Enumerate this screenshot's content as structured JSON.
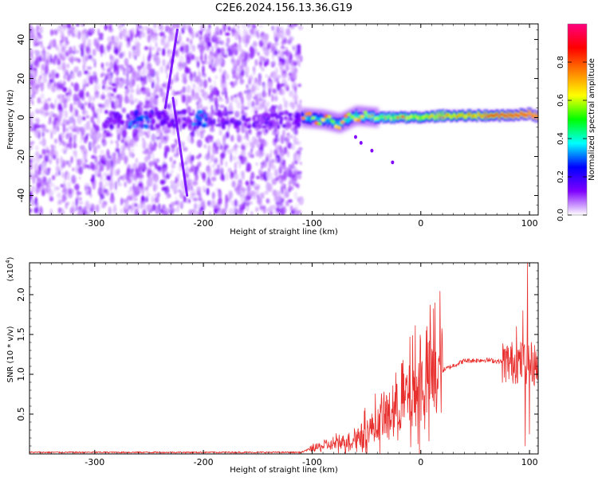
{
  "figure": {
    "title": "C2E6.2024.156.13.36.G19"
  },
  "chart_data": [
    {
      "type": "heatmap",
      "xlabel": "Height of straight line (km)",
      "ylabel": "Frequency (Hz)",
      "xlim": [
        -360,
        108
      ],
      "ylim": [
        -50,
        48
      ],
      "x_ticks": [
        -300,
        -200,
        -100,
        0,
        100
      ],
      "y_ticks": [
        -40,
        -20,
        0,
        20,
        40
      ],
      "colorbar": {
        "label": "Normalized spectral amplitude",
        "range": [
          0,
          1
        ],
        "ticks": [
          "0.0",
          "0.2",
          "0.4",
          "0.6",
          "0.8"
        ],
        "tick_values": [
          0,
          0.2,
          0.4,
          0.6,
          0.8
        ],
        "colors": [
          "#ffffff",
          "#7f00ff",
          "#0000ff",
          "#00ffff",
          "#00ff00",
          "#ffff00",
          "#ff8000",
          "#ff0000",
          "#ff0080"
        ]
      },
      "features": {
        "noise_region_x": [
          -360,
          -110
        ],
        "signal_region_x": [
          -110,
          108
        ],
        "ridge_frequency_hz": [
          [
            -110,
            0
          ],
          [
            -90,
            -1
          ],
          [
            -75,
            -3
          ],
          [
            -60,
            1
          ],
          [
            -40,
            0
          ],
          [
            -20,
            0
          ],
          [
            0,
            0
          ],
          [
            20,
            1
          ],
          [
            40,
            1
          ],
          [
            60,
            1
          ],
          [
            80,
            1
          ],
          [
            100,
            2
          ],
          [
            108,
            0
          ]
        ],
        "streaks": [
          {
            "x": [
              -215,
              -228
            ],
            "y": [
              -40,
              10
            ]
          },
          {
            "x": [
              -235,
              -224
            ],
            "y": [
              5,
              45
            ]
          }
        ],
        "outliers": [
          [
            -60,
            -10
          ],
          [
            -55,
            -13
          ],
          [
            -45,
            -17
          ],
          [
            -26,
            -23
          ]
        ]
      }
    },
    {
      "type": "line",
      "xlabel": "Height of straight line (km)",
      "ylabel": "SNR (10 * v/v)",
      "y_multiplier": "(x10",
      "y_multiplier_exp": "4",
      "xlim": [
        -360,
        108
      ],
      "ylim": [
        0,
        2.4
      ],
      "x_ticks": [
        -300,
        -200,
        -100,
        0,
        100
      ],
      "y_ticks": [
        0.5,
        1.0,
        1.5,
        2.0
      ],
      "y_tick_labels": [
        "0.5",
        "1.0",
        "1.5",
        "2.0"
      ],
      "color": "#e8302e",
      "series_envelope": [
        [
          -360,
          0.02
        ],
        [
          -250,
          0.02
        ],
        [
          -110,
          0.02
        ],
        [
          -100,
          0.07
        ],
        [
          -80,
          0.12
        ],
        [
          -60,
          0.2
        ],
        [
          -40,
          0.38
        ],
        [
          -20,
          0.6
        ],
        [
          0,
          0.85
        ],
        [
          20,
          1.05
        ],
        [
          40,
          1.17
        ],
        [
          60,
          1.18
        ],
        [
          80,
          1.15
        ],
        [
          90,
          1.15
        ],
        [
          100,
          1.15
        ],
        [
          108,
          1.1
        ]
      ],
      "spikes": [
        [
          98,
          2.4
        ],
        [
          96,
          0.1
        ],
        [
          100,
          0.25
        ],
        [
          94,
          1.8
        ],
        [
          88,
          1.6
        ],
        [
          -8,
          0.35
        ],
        [
          -40,
          0.3
        ],
        [
          -65,
          0.05
        ]
      ]
    }
  ]
}
